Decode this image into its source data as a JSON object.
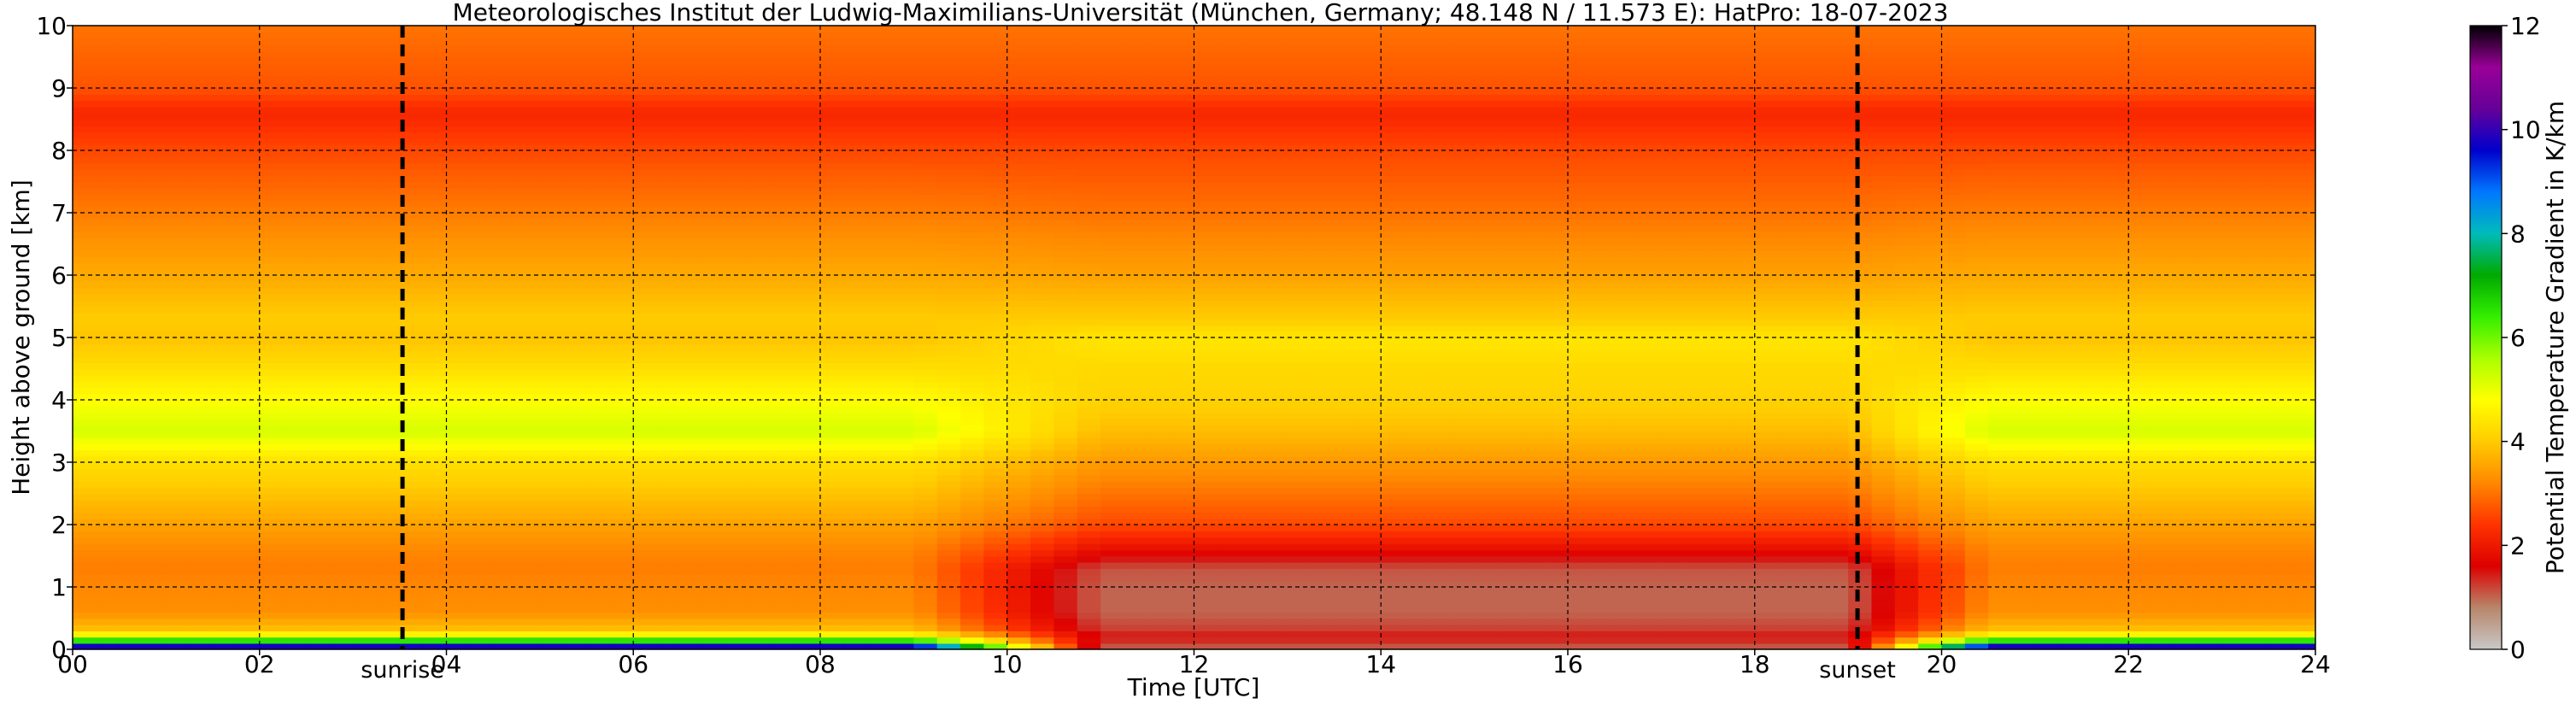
{
  "title": "Meteorologisches Institut der Ludwig-Maximilians-Universität (München, Germany; 48.148 N / 11.573 E):    HatPro: 18-07-2023",
  "chart_data": {
    "type": "heatmap",
    "title": "Meteorologisches Institut der Ludwig-Maximilians-Universität (München, Germany; 48.148 N / 11.573 E):    HatPro: 18-07-2023",
    "xlabel": "Time [UTC]",
    "ylabel": "Height above ground [km]",
    "xlim": [
      0,
      24
    ],
    "ylim": [
      0,
      10
    ],
    "x_ticks": [
      "00",
      "02",
      "04",
      "06",
      "08",
      "10",
      "12",
      "14",
      "16",
      "18",
      "20",
      "22",
      "24"
    ],
    "y_ticks": [
      "0",
      "1",
      "2",
      "3",
      "4",
      "5",
      "6",
      "7",
      "8",
      "9",
      "10"
    ],
    "grid": true,
    "colorbar": {
      "label": "Potential Temperature Gradient in K/km",
      "range": [
        0,
        12
      ],
      "ticks": [
        "0",
        "2",
        "4",
        "6",
        "8",
        "10",
        "12"
      ],
      "colors": [
        "#c8c8c8",
        "#b8866a",
        "#dd0000",
        "#ff3300",
        "#ff8800",
        "#ffcc00",
        "#ffff00",
        "#aaff00",
        "#33ee00",
        "#00aa00",
        "#00bbbb",
        "#0077ff",
        "#0000cc",
        "#660099",
        "#990099",
        "#000000"
      ]
    },
    "events": [
      {
        "label": "sunrise",
        "time": 3.53
      },
      {
        "label": "sunset",
        "time": 19.1
      }
    ],
    "profile_height_km": [
      0.0,
      0.1,
      0.2,
      0.35,
      0.6,
      1.0,
      1.3,
      1.6,
      2.0,
      2.5,
      3.0,
      3.5,
      4.0,
      4.5,
      5.0,
      5.3,
      6.0,
      7.0,
      8.0,
      8.6,
      9.0,
      10.0
    ],
    "profile_night_k_per_km": [
      11.5,
      8.0,
      5.0,
      3.8,
      3.3,
      3.2,
      3.1,
      3.2,
      3.5,
      3.9,
      4.3,
      5.2,
      4.8,
      4.3,
      3.9,
      4.0,
      3.6,
      3.1,
      2.6,
      2.2,
      2.7,
      3.0
    ],
    "profile_day_k_per_km": [
      1.0,
      1.2,
      1.5,
      1.2,
      1.0,
      1.0,
      1.1,
      1.8,
      2.6,
      3.0,
      3.4,
      3.8,
      4.1,
      4.2,
      4.4,
      4.0,
      3.5,
      3.0,
      2.6,
      2.2,
      2.7,
      3.0
    ]
  }
}
